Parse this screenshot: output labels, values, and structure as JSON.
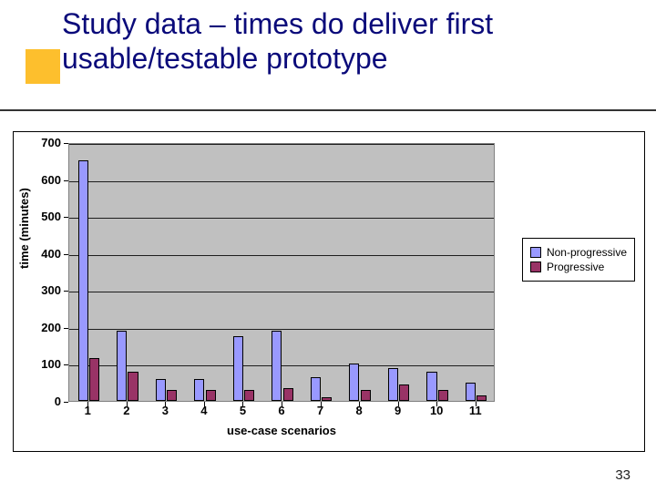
{
  "slide": {
    "title": "Study data – times do deliver first usable/testable prototype",
    "page_number": "33",
    "accent_color": "#fdbf2d",
    "title_color": "#0a0a7a",
    "title_fontsize": 32
  },
  "chart": {
    "type": "bar",
    "xlabel": "use-case scenarios",
    "ylabel": "time (minutes)",
    "ylim": [
      0,
      700
    ],
    "ytick_step": 100,
    "categories": [
      "1",
      "2",
      "3",
      "4",
      "5",
      "6",
      "7",
      "8",
      "9",
      "10",
      "11"
    ],
    "series": [
      {
        "name": "Non-progressive",
        "color": "#9999ff",
        "values": [
          650,
          190,
          60,
          60,
          175,
          190,
          65,
          100,
          90,
          80,
          50
        ]
      },
      {
        "name": "Progressive",
        "color": "#993366",
        "values": [
          115,
          80,
          30,
          30,
          30,
          35,
          10,
          30,
          45,
          30,
          15
        ]
      }
    ],
    "background_color": "#c0c0c0",
    "grid_color": "#000000",
    "bar_group_width": 0.55,
    "bar_gap": 0.03,
    "label_fontsize": 13,
    "tick_fontsize": 13,
    "legend_fontsize": 12
  }
}
